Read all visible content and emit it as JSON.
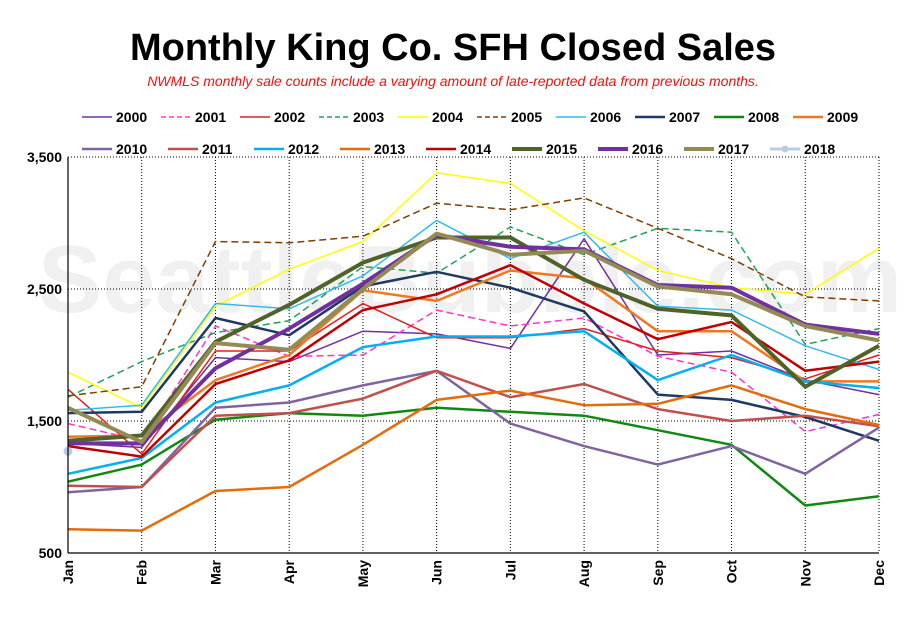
{
  "chart_data": {
    "type": "line",
    "title": "Monthly King Co. SFH Closed Sales",
    "subtitle": "NWMLS monthly sale counts include a varying amount of late-reported data from previous months.",
    "watermark": "SeattleBubble.com",
    "xlabel": "",
    "ylabel": "",
    "categories": [
      "Jan",
      "Feb",
      "Mar",
      "Apr",
      "May",
      "Jun",
      "Jul",
      "Aug",
      "Sep",
      "Oct",
      "Nov",
      "Dec"
    ],
    "ylim": [
      500,
      3500
    ],
    "yticks": [
      500,
      1500,
      2500,
      3500
    ],
    "ytick_labels": [
      "500",
      "1,500",
      "2,500",
      "3,500"
    ],
    "grid": true,
    "legend_position": "top",
    "series": [
      {
        "name": "2000",
        "color": "#7030a0",
        "dash": "solid",
        "width": 1.5,
        "values": [
          1330,
          1300,
          1980,
          1950,
          2180,
          2160,
          2050,
          2880,
          2000,
          2030,
          1810,
          1700
        ]
      },
      {
        "name": "2001",
        "color": "#ff33cc",
        "dash": "dash",
        "width": 1.5,
        "values": [
          1480,
          1350,
          2220,
          1990,
          2000,
          2340,
          2220,
          2280,
          1990,
          1870,
          1420,
          1550
        ]
      },
      {
        "name": "2002",
        "color": "#e02020",
        "dash": "solid",
        "width": 1.5,
        "values": [
          1740,
          1250,
          2030,
          2030,
          2390,
          2130,
          2130,
          2200,
          2030,
          1980,
          1820,
          2000
        ]
      },
      {
        "name": "2003",
        "color": "#22a05a",
        "dash": "dash",
        "width": 1.5,
        "values": [
          1680,
          1950,
          2170,
          2260,
          2670,
          2620,
          2970,
          2760,
          2960,
          2930,
          2080,
          2200
        ]
      },
      {
        "name": "2004",
        "color": "#ffff00",
        "dash": "solid",
        "width": 1.5,
        "values": [
          1870,
          1600,
          2370,
          2650,
          2860,
          3380,
          3300,
          2940,
          2640,
          2510,
          2460,
          2810
        ]
      },
      {
        "name": "2005",
        "color": "#7f3f00",
        "dash": "dash",
        "width": 1.5,
        "values": [
          1690,
          1760,
          2860,
          2850,
          2900,
          3150,
          3100,
          3190,
          2960,
          2730,
          2440,
          2410
        ]
      },
      {
        "name": "2006",
        "color": "#33bbee",
        "dash": "solid",
        "width": 1.5,
        "values": [
          1580,
          1620,
          2390,
          2350,
          2600,
          3020,
          2730,
          2930,
          2370,
          2340,
          2070,
          1890
        ]
      },
      {
        "name": "2007",
        "color": "#1f3864",
        "dash": "solid",
        "width": 2.5,
        "values": [
          1560,
          1570,
          2280,
          2150,
          2520,
          2630,
          2510,
          2330,
          1700,
          1660,
          1530,
          1350
        ]
      },
      {
        "name": "2008",
        "color": "#118811",
        "dash": "solid",
        "width": 2.5,
        "values": [
          1040,
          1170,
          1510,
          1560,
          1540,
          1600,
          1570,
          1540,
          1430,
          1320,
          860,
          930
        ]
      },
      {
        "name": "2009",
        "color": "#ee7722",
        "dash": "solid",
        "width": 2.5,
        "values": [
          1380,
          1390,
          1810,
          2000,
          2490,
          2410,
          2640,
          2580,
          2180,
          2180,
          1800,
          1800
        ]
      },
      {
        "name": "2010",
        "color": "#8064a2",
        "dash": "solid",
        "width": 2.5,
        "values": [
          960,
          1000,
          1600,
          1640,
          1770,
          1880,
          1480,
          1310,
          1170,
          1310,
          1100,
          1450
        ]
      },
      {
        "name": "2011",
        "color": "#c0504d",
        "dash": "solid",
        "width": 2.5,
        "values": [
          1010,
          1000,
          1540,
          1560,
          1670,
          1880,
          1680,
          1780,
          1590,
          1500,
          1540,
          1460
        ]
      },
      {
        "name": "2012",
        "color": "#00b0f0",
        "dash": "solid",
        "width": 2.5,
        "values": [
          1100,
          1220,
          1640,
          1770,
          2060,
          2140,
          2140,
          2180,
          1810,
          2000,
          1800,
          1750
        ]
      },
      {
        "name": "2013",
        "color": "#e46c0a",
        "dash": "solid",
        "width": 2.5,
        "values": [
          680,
          670,
          970,
          1000,
          1320,
          1660,
          1730,
          1620,
          1630,
          1770,
          1590,
          1470
        ]
      },
      {
        "name": "2014",
        "color": "#c00000",
        "dash": "solid",
        "width": 2.5,
        "values": [
          1310,
          1230,
          1780,
          1960,
          2340,
          2460,
          2680,
          2390,
          2120,
          2250,
          1880,
          1950
        ]
      },
      {
        "name": "2015",
        "color": "#4f6228",
        "dash": "solid",
        "width": 4,
        "values": [
          1350,
          1390,
          2100,
          2380,
          2700,
          2890,
          2890,
          2570,
          2350,
          2300,
          1760,
          2070
        ]
      },
      {
        "name": "2016",
        "color": "#7030a0",
        "dash": "solid",
        "width": 4,
        "values": [
          1330,
          1330,
          1900,
          2200,
          2540,
          2910,
          2820,
          2800,
          2530,
          2510,
          2230,
          2160
        ]
      },
      {
        "name": "2017",
        "color": "#948a54",
        "dash": "solid",
        "width": 4,
        "values": [
          1600,
          1340,
          2090,
          2040,
          2500,
          2920,
          2760,
          2790,
          2520,
          2460,
          2220,
          2110
        ]
      },
      {
        "name": "2018",
        "color": "#b8cce4",
        "dash": "solid",
        "width": 3,
        "marker": true,
        "values": [
          1270,
          null,
          null,
          null,
          null,
          null,
          null,
          null,
          null,
          null,
          null,
          null
        ]
      }
    ]
  }
}
